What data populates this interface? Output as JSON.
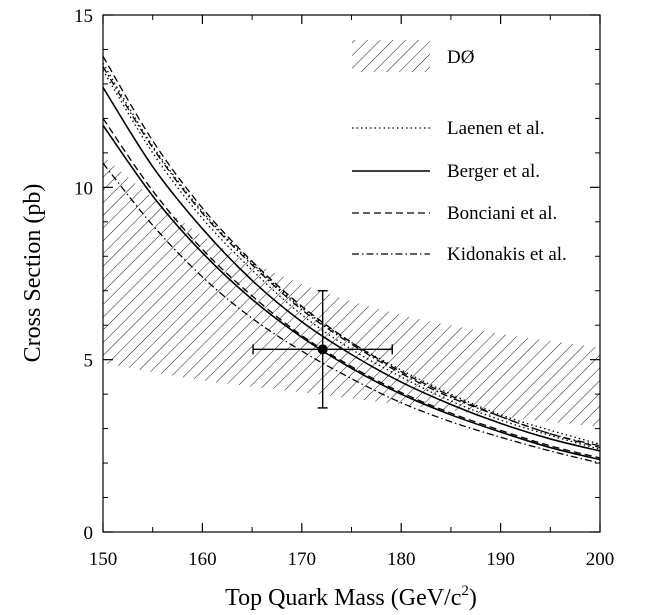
{
  "chart_data": {
    "type": "line",
    "xlabel": "Top Quark Mass (GeV/c",
    "xlabel_sup": "2",
    "xlabel_close": ")",
    "ylabel": "Cross Section (pb)",
    "xlim": [
      150,
      200
    ],
    "ylim": [
      0,
      15
    ],
    "x_ticks": [
      150,
      160,
      170,
      180,
      190,
      200
    ],
    "y_ticks": [
      0,
      5,
      10,
      15
    ],
    "grid": false,
    "legend_placement": "top-right",
    "band": {
      "name": "DØ",
      "style": "hatched",
      "x": [
        150,
        160,
        170,
        180,
        190,
        200
      ],
      "lower": [
        4.9,
        4.4,
        4.05,
        3.7,
        3.35,
        3.05
      ],
      "upper": [
        10.9,
        8.6,
        7.2,
        6.3,
        5.75,
        5.35
      ]
    },
    "measurement": {
      "x": 172.1,
      "y": 5.3,
      "x_err": [
        7.0,
        7.0
      ],
      "y_err": [
        1.7,
        1.7
      ]
    },
    "series": [
      {
        "name": "Laenen et al.",
        "dash": "dotted",
        "x": [
          150,
          155,
          160,
          165,
          170,
          175,
          180,
          185,
          190,
          195,
          200
        ],
        "upper": [
          13.6,
          11.2,
          9.3,
          7.8,
          6.5,
          5.5,
          4.7,
          4.0,
          3.4,
          2.95,
          2.55
        ],
        "lower": [
          13.4,
          11.0,
          9.1,
          7.6,
          6.3,
          5.3,
          4.5,
          3.8,
          3.25,
          2.8,
          2.4
        ]
      },
      {
        "name": "Berger et al.",
        "dash": "solid",
        "x": [
          150,
          155,
          160,
          165,
          170,
          175,
          180,
          185,
          190,
          195,
          200
        ],
        "upper": [
          12.9,
          10.6,
          8.8,
          7.3,
          6.1,
          5.15,
          4.35,
          3.7,
          3.15,
          2.7,
          2.35
        ],
        "lower": [
          11.8,
          9.75,
          8.1,
          6.75,
          5.65,
          4.75,
          4.0,
          3.4,
          2.9,
          2.45,
          2.1
        ]
      },
      {
        "name": "Bonciani et al.",
        "dash": "dashed",
        "x": [
          150,
          155,
          160,
          165,
          170,
          175,
          180,
          185,
          190,
          195,
          200
        ],
        "upper": [
          13.8,
          11.35,
          9.4,
          7.85,
          6.55,
          5.5,
          4.65,
          3.95,
          3.35,
          2.85,
          2.45
        ],
        "lower": [
          12.0,
          9.9,
          8.2,
          6.85,
          5.7,
          4.8,
          4.05,
          3.45,
          2.95,
          2.5,
          2.15
        ]
      },
      {
        "name": "Kidonakis et al.",
        "dash": "dash-dot",
        "x": [
          150,
          155,
          160,
          165,
          170,
          175,
          180,
          185,
          190,
          195,
          200
        ],
        "upper": [
          13.5,
          11.15,
          9.25,
          7.75,
          6.45,
          5.45,
          4.6,
          3.9,
          3.35,
          2.85,
          2.5
        ],
        "lower": [
          10.7,
          8.9,
          7.4,
          6.2,
          5.25,
          4.45,
          3.75,
          3.2,
          2.75,
          2.35,
          2.0
        ]
      }
    ]
  }
}
